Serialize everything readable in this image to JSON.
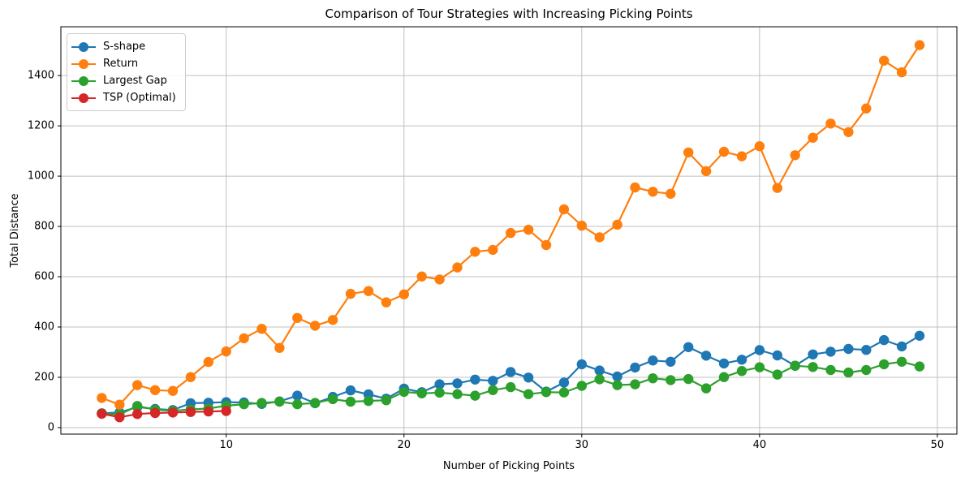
{
  "chart_data": {
    "type": "line",
    "title": "Comparison of Tour Strategies with Increasing Picking Points",
    "xlabel": "Number of Picking Points",
    "ylabel": "Total Distance",
    "grid": true,
    "legend_position": "upper left",
    "xlim": [
      0.7,
      51.1
    ],
    "ylim": [
      -26,
      1594
    ],
    "xticks": [
      10,
      20,
      30,
      40,
      50
    ],
    "yticks": [
      0,
      200,
      400,
      600,
      800,
      1000,
      1200,
      1400
    ],
    "x": [
      3,
      4,
      5,
      6,
      7,
      8,
      9,
      10,
      11,
      12,
      13,
      14,
      15,
      16,
      17,
      18,
      19,
      20,
      21,
      22,
      23,
      24,
      25,
      26,
      27,
      28,
      29,
      30,
      31,
      32,
      33,
      34,
      35,
      36,
      37,
      38,
      39,
      40,
      41,
      42,
      43,
      44,
      45,
      46,
      47,
      48,
      49
    ],
    "series": [
      {
        "name": "S-shape",
        "color": "#1f77b4",
        "values": [
          57,
          60,
          82,
          74,
          70,
          97,
          99,
          101,
          100,
          94,
          104,
          127,
          97,
          122,
          148,
          132,
          115,
          155,
          141,
          172,
          176,
          191,
          186,
          221,
          199,
          143,
          179,
          252,
          227,
          203,
          239,
          267,
          262,
          320,
          286,
          255,
          270,
          308,
          287,
          246,
          291,
          302,
          313,
          309,
          348,
          323,
          365
        ]
      },
      {
        "name": "Return",
        "color": "#ff7f0e",
        "values": [
          118,
          91,
          169,
          149,
          146,
          201,
          261,
          303,
          355,
          393,
          317,
          436,
          405,
          428,
          532,
          543,
          498,
          530,
          601,
          589,
          637,
          699,
          707,
          774,
          787,
          726,
          868,
          803,
          757,
          807,
          955,
          938,
          930,
          1094,
          1020,
          1097,
          1079,
          1119,
          953,
          1083,
          1153,
          1209,
          1175,
          1269,
          1459,
          1413,
          1521
        ]
      },
      {
        "name": "Largest Gap",
        "color": "#2ca02c",
        "values": [
          56,
          52,
          86,
          71,
          67,
          72,
          76,
          87,
          93,
          98,
          103,
          93,
          98,
          113,
          103,
          106,
          109,
          142,
          136,
          139,
          133,
          127,
          149,
          161,
          133,
          141,
          140,
          166,
          192,
          169,
          172,
          196,
          189,
          193,
          156,
          201,
          225,
          240,
          211,
          246,
          241,
          229,
          219,
          229,
          252,
          262,
          243
        ]
      },
      {
        "name": "TSP (Optimal)",
        "color": "#d62728",
        "values": [
          55,
          41,
          54,
          58,
          60,
          62,
          64,
          66
        ]
      }
    ]
  }
}
